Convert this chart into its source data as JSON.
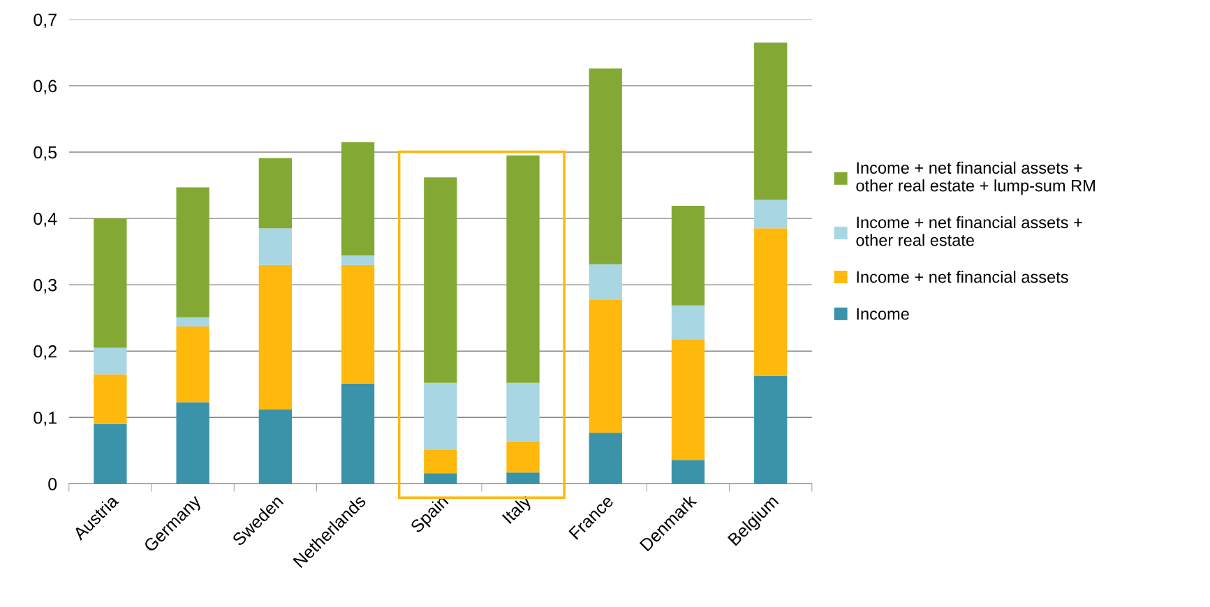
{
  "chart_data": {
    "type": "bar",
    "stacked": true,
    "categories": [
      "Austria",
      "Germany",
      "Sweden",
      "Netherlands",
      "Spain",
      "Italy",
      "France",
      "Denmark",
      "Belgium"
    ],
    "series": [
      {
        "name": "Income",
        "color": "#3a93a8",
        "values": [
          0.09,
          0.123,
          0.112,
          0.151,
          0.016,
          0.017,
          0.077,
          0.036,
          0.163
        ]
      },
      {
        "name": "Income + net financial assets",
        "color": "#ffb80c",
        "values": [
          0.075,
          0.114,
          0.218,
          0.179,
          0.035,
          0.047,
          0.2,
          0.181,
          0.222
        ]
      },
      {
        "name": "Income + net financial assets +\nother real estate",
        "color": "#a9d6e3",
        "values": [
          0.04,
          0.014,
          0.055,
          0.014,
          0.101,
          0.088,
          0.054,
          0.052,
          0.043
        ]
      },
      {
        "name": "Income + net financial assets +\nother real estate + lump-sum RM",
        "color": "#83a934",
        "values": [
          0.195,
          0.196,
          0.106,
          0.171,
          0.31,
          0.343,
          0.295,
          0.15,
          0.237
        ]
      }
    ],
    "ylim": [
      0,
      0.7
    ],
    "yticks": [
      0,
      {
        "value": 0.1,
        "label": "0,1"
      },
      {
        "value": 0.2,
        "label": "0,2"
      },
      {
        "value": 0.3,
        "label": "0,3"
      },
      {
        "value": 0.4,
        "label": "0,4"
      },
      {
        "value": 0.5,
        "label": "0,5"
      },
      {
        "value": 0.6,
        "label": "0,6"
      },
      {
        "value": 0.7,
        "label": "0,7"
      }
    ],
    "grid": "y",
    "legend": "right"
  }
}
